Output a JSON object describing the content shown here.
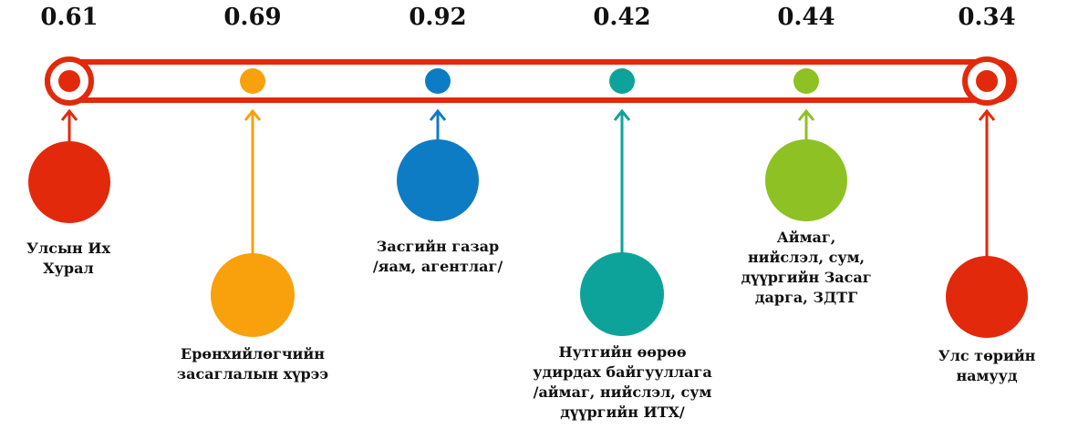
{
  "colors": {
    "red": "#E3290B",
    "orange": "#F8A10C",
    "blue": "#0D7CC4",
    "teal": "#0EA39A",
    "green": "#8DC124",
    "track": "#E3290B"
  },
  "nodes": [
    {
      "value": "0.61",
      "label": [
        "Улсын Их",
        "Хурал"
      ],
      "color_key": "red"
    },
    {
      "value": "0.69",
      "label": [
        "Ерөнхийлөгчийн",
        "засаглалын хүрээ"
      ],
      "color_key": "orange"
    },
    {
      "value": "0.92",
      "label": [
        "Засгийн газар",
        "/яам, агентлаг/"
      ],
      "color_key": "blue"
    },
    {
      "value": "0.42",
      "label": [
        "Нутгийн өөрөө",
        "удирдах байгууллага",
        "/аймаг, нийслэл, сум",
        "дүүргийн ИТХ/"
      ],
      "color_key": "teal"
    },
    {
      "value": "0.44",
      "label": [
        "Аймаг,",
        "нийслэл, сум,",
        "дүүргийн Засаг",
        "дарга, ЗДТГ"
      ],
      "color_key": "green"
    },
    {
      "value": "0.34",
      "label": [
        "Улс төрийн",
        "намууд"
      ],
      "color_key": "red"
    }
  ]
}
